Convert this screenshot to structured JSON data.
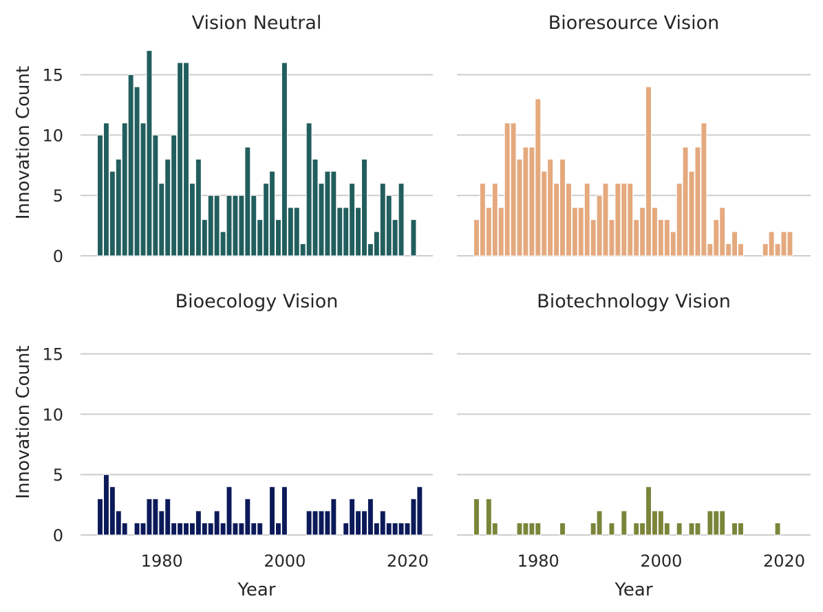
{
  "chart_data": [
    {
      "type": "bar",
      "title": "Vision Neutral",
      "color": "#225e5e",
      "ylabel": "Innovation Count",
      "xlabel": "",
      "start_year": 1970,
      "values": [
        10,
        11,
        7,
        8,
        11,
        15,
        14,
        11,
        17,
        10,
        6,
        8,
        10,
        16,
        16,
        6,
        8,
        3,
        5,
        5,
        2,
        5,
        5,
        5,
        9,
        5,
        3,
        6,
        7,
        3,
        16,
        4,
        4,
        1,
        11,
        8,
        6,
        7,
        7,
        4,
        4,
        6,
        4,
        8,
        1,
        2,
        6,
        5,
        3,
        6,
        0,
        3
      ],
      "ylim": [
        0,
        17
      ],
      "yticks": [
        "0",
        "5",
        "10",
        "15"
      ],
      "xticks": [],
      "grid": "y"
    },
    {
      "type": "bar",
      "title": "Bioresource Vision",
      "color": "#e5a97e",
      "ylabel": "",
      "xlabel": "",
      "start_year": 1970,
      "values": [
        3,
        6,
        4,
        6,
        4,
        11,
        11,
        8,
        9,
        9,
        13,
        7,
        8,
        6,
        8,
        6,
        4,
        4,
        6,
        3,
        5,
        6,
        3,
        6,
        6,
        6,
        3,
        4,
        14,
        4,
        3,
        3,
        2,
        6,
        9,
        7,
        9,
        11,
        1,
        3,
        4,
        1,
        2,
        1,
        0,
        0,
        0,
        1,
        2,
        1,
        2,
        2
      ],
      "ylim": [
        0,
        17
      ],
      "yticks": [],
      "xticks": [],
      "grid": "y"
    },
    {
      "type": "bar",
      "title": "Bioecology Vision",
      "color": "#0c1a5a",
      "ylabel": "Innovation Count",
      "xlabel": "Year",
      "start_year": 1970,
      "values": [
        3,
        5,
        4,
        2,
        1,
        0,
        1,
        1,
        3,
        3,
        2,
        3,
        1,
        1,
        1,
        1,
        2,
        1,
        1,
        2,
        1,
        4,
        1,
        1,
        3,
        1,
        1,
        0,
        4,
        1,
        4,
        0,
        0,
        0,
        2,
        2,
        2,
        2,
        3,
        0,
        1,
        3,
        2,
        2,
        3,
        1,
        2,
        1,
        1,
        1,
        1,
        3,
        4
      ],
      "ylim": [
        0,
        17
      ],
      "yticks": [
        "0",
        "5",
        "10",
        "15"
      ],
      "xticks": [
        "1980",
        "2000",
        "2020"
      ],
      "grid": "y"
    },
    {
      "type": "bar",
      "title": "Biotechnology Vision",
      "color": "#7b853a",
      "ylabel": "",
      "xlabel": "Year",
      "start_year": 1970,
      "values": [
        3,
        0,
        3,
        1,
        0,
        0,
        0,
        1,
        1,
        1,
        1,
        0,
        0,
        0,
        1,
        0,
        0,
        0,
        0,
        1,
        2,
        0,
        1,
        0,
        2,
        0,
        1,
        1,
        4,
        2,
        2,
        1,
        0,
        1,
        0,
        1,
        1,
        0,
        2,
        2,
        2,
        0,
        1,
        1,
        0,
        0,
        0,
        0,
        0,
        1
      ],
      "ylim": [
        0,
        17
      ],
      "yticks": [],
      "xticks": [
        "1980",
        "2000",
        "2020"
      ],
      "grid": "y"
    }
  ]
}
